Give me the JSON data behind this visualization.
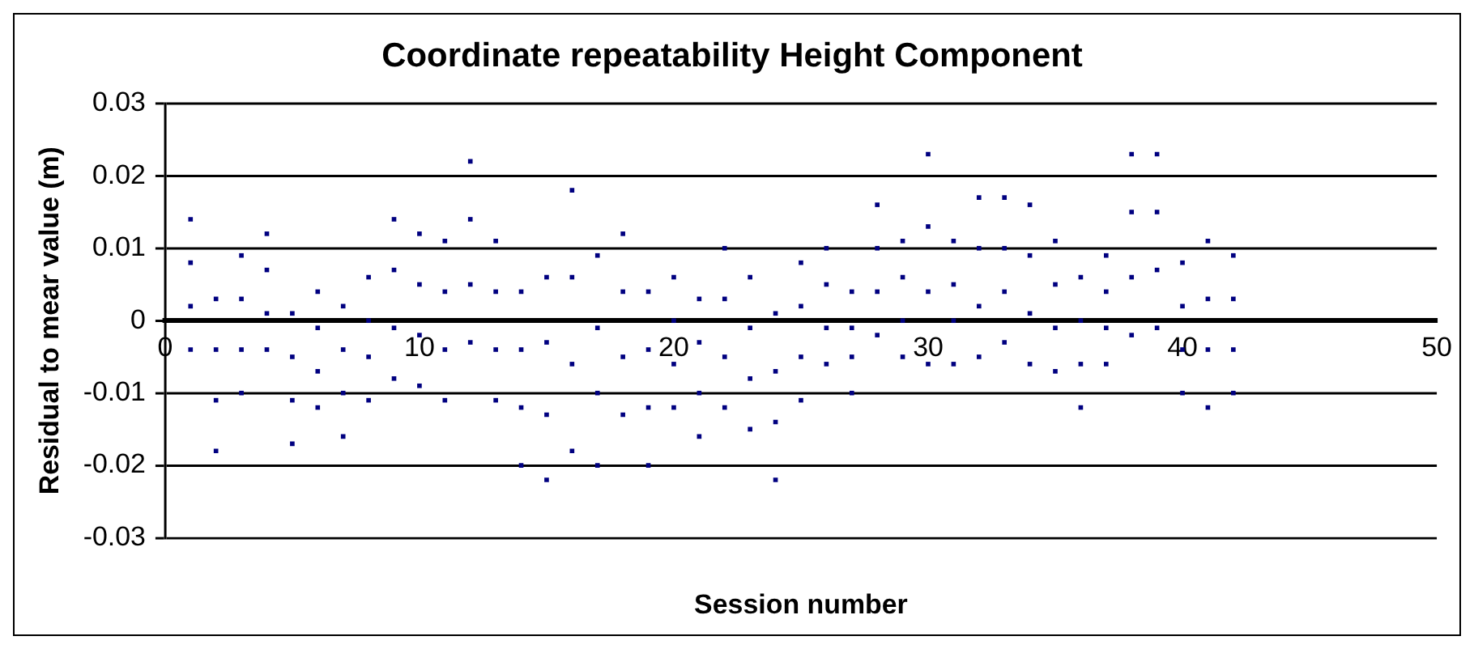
{
  "chart_data": {
    "type": "scatter",
    "title": "Coordinate repeatability Height Component",
    "xlabel": "Session number",
    "ylabel": "Residual to mear value (m)",
    "xlim": [
      0,
      50
    ],
    "xticks": [
      0,
      10,
      20,
      30,
      40,
      50
    ],
    "ylim": [
      -0.03,
      0.03
    ],
    "yticks": [
      -0.03,
      -0.02,
      -0.01,
      0,
      0.01,
      0.02,
      0.03
    ],
    "grid": "y",
    "marker": "square",
    "series": [
      {
        "color": "#000080",
        "x": [
          1,
          1,
          1,
          1,
          2,
          2,
          2,
          2,
          3,
          3,
          3,
          3,
          4,
          4,
          4,
          4,
          5,
          5,
          5,
          5,
          6,
          6,
          6,
          6,
          7,
          7,
          7,
          7,
          8,
          8,
          8,
          8,
          9,
          9,
          9,
          9,
          10,
          10,
          10,
          10,
          11,
          11,
          11,
          11,
          12,
          12,
          12,
          12,
          13,
          13,
          13,
          13,
          14,
          14,
          14,
          14,
          15,
          15,
          15,
          15,
          16,
          16,
          16,
          16,
          17,
          17,
          17,
          17,
          18,
          18,
          18,
          18,
          19,
          19,
          19,
          19,
          20,
          20,
          20,
          20,
          21,
          21,
          21,
          21,
          22,
          22,
          22,
          22,
          23,
          23,
          23,
          23,
          24,
          24,
          24,
          24,
          25,
          25,
          25,
          25,
          26,
          26,
          26,
          26,
          27,
          27,
          27,
          27,
          28,
          28,
          28,
          28,
          29,
          29,
          29,
          29,
          30,
          30,
          30,
          30,
          31,
          31,
          31,
          31,
          32,
          32,
          32,
          32,
          33,
          33,
          33,
          33,
          34,
          34,
          34,
          34,
          35,
          35,
          35,
          35,
          36,
          36,
          36,
          36,
          37,
          37,
          37,
          37,
          38,
          38,
          38,
          38,
          39,
          39,
          39,
          39,
          40,
          40,
          40,
          40,
          41,
          41,
          41,
          41,
          42,
          42,
          42,
          42
        ],
        "values": [
          0.014,
          0.008,
          0.002,
          -0.004,
          0.003,
          -0.004,
          -0.011,
          -0.018,
          0.009,
          0.003,
          -0.004,
          -0.01,
          0.012,
          0.007,
          0.001,
          -0.004,
          0.001,
          -0.005,
          -0.011,
          -0.017,
          0.004,
          -0.001,
          -0.007,
          -0.012,
          0.002,
          -0.004,
          -0.01,
          -0.016,
          0.006,
          0.0,
          -0.005,
          -0.011,
          0.014,
          0.007,
          -0.001,
          -0.008,
          0.012,
          0.005,
          -0.002,
          -0.009,
          0.011,
          0.004,
          -0.004,
          -0.011,
          0.022,
          0.014,
          0.005,
          -0.003,
          0.011,
          0.004,
          -0.004,
          -0.011,
          0.004,
          -0.004,
          -0.012,
          -0.02,
          0.006,
          -0.003,
          -0.013,
          -0.022,
          0.018,
          0.006,
          -0.006,
          -0.018,
          0.009,
          -0.001,
          -0.01,
          -0.02,
          0.012,
          0.004,
          -0.005,
          -0.013,
          0.004,
          -0.004,
          -0.012,
          -0.02,
          0.006,
          0.0,
          -0.006,
          -0.012,
          0.003,
          -0.003,
          -0.01,
          -0.016,
          0.01,
          0.003,
          -0.005,
          -0.012,
          0.006,
          -0.001,
          -0.008,
          -0.015,
          0.001,
          -0.007,
          -0.014,
          -0.022,
          0.008,
          0.002,
          -0.005,
          -0.011,
          0.01,
          0.005,
          -0.001,
          -0.006,
          0.004,
          -0.001,
          -0.005,
          -0.01,
          0.016,
          0.01,
          0.004,
          -0.002,
          0.011,
          0.006,
          0.0,
          -0.005,
          0.023,
          0.013,
          0.004,
          -0.006,
          0.011,
          0.005,
          0.0,
          -0.006,
          0.017,
          0.01,
          0.002,
          -0.005,
          0.017,
          0.01,
          0.004,
          -0.003,
          0.016,
          0.009,
          0.001,
          -0.006,
          0.011,
          0.005,
          -0.001,
          -0.007,
          0.006,
          0.0,
          -0.006,
          -0.012,
          0.009,
          0.004,
          -0.001,
          -0.006,
          0.023,
          0.015,
          0.006,
          -0.002,
          0.023,
          0.015,
          0.007,
          -0.001,
          0.008,
          0.002,
          -0.004,
          -0.01,
          0.011,
          0.003,
          -0.004,
          -0.012,
          0.009,
          0.003,
          -0.004,
          -0.01
        ]
      }
    ]
  }
}
